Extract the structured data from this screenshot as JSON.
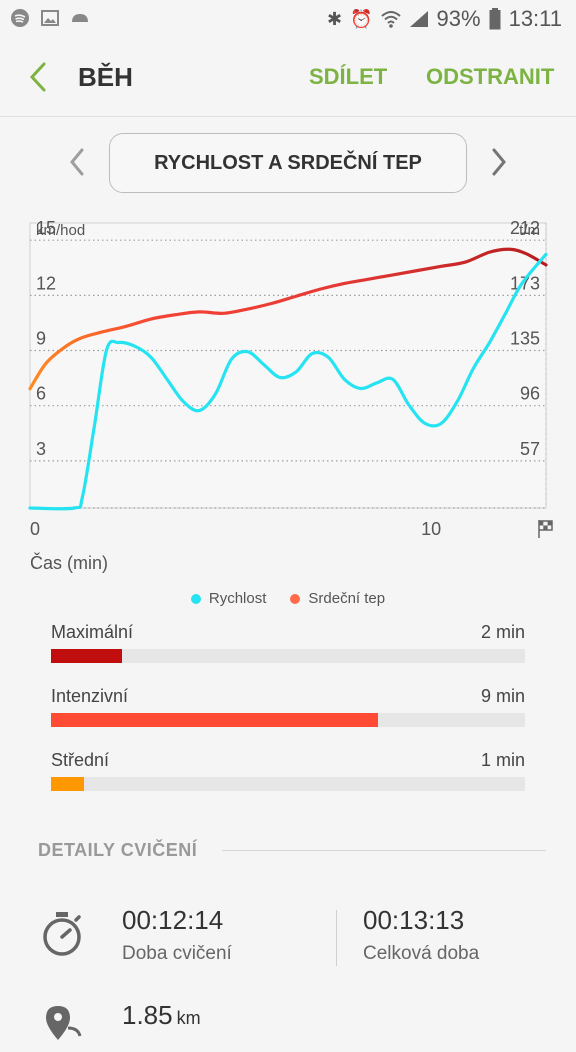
{
  "status_bar": {
    "battery": "93%",
    "time": "13:11"
  },
  "app_bar": {
    "title": "BĚH",
    "share": "SDÍLET",
    "delete": "ODSTRANIT"
  },
  "selector": {
    "label": "RYCHLOST A SRDEČNÍ TEP"
  },
  "chart_data": {
    "type": "line",
    "left_axis": {
      "unit": "km/hod",
      "ticks": [
        "15",
        "12",
        "9",
        "6",
        "3"
      ]
    },
    "right_axis": {
      "unit": "t/m",
      "ticks": [
        "212",
        "173",
        "135",
        "96",
        "57"
      ]
    },
    "x_ticks": [
      "0",
      "10"
    ],
    "xlabel": "Čas (min)",
    "xlim": [
      0,
      12.8
    ],
    "ylim": [
      0,
      15.5
    ],
    "series": [
      {
        "name": "Rychlost",
        "color": "#26e3f2",
        "x": [
          0,
          1.1,
          1.3,
          1.6,
          1.9,
          2.2,
          2.6,
          3.0,
          3.4,
          3.8,
          4.2,
          4.6,
          5.0,
          5.4,
          5.8,
          6.2,
          6.6,
          7.0,
          7.4,
          7.8,
          8.2,
          8.6,
          9.0,
          9.4,
          9.8,
          10.2,
          10.6,
          11.0,
          11.4,
          11.8,
          12.2,
          12.8
        ],
        "values": [
          0,
          0,
          0.6,
          4.5,
          8.6,
          9.0,
          8.8,
          8.2,
          7.0,
          5.8,
          5.3,
          6.2,
          8.1,
          8.5,
          7.8,
          7.1,
          7.4,
          8.4,
          8.2,
          7.0,
          6.5,
          6.8,
          7.0,
          5.6,
          4.6,
          4.6,
          5.8,
          7.6,
          9.0,
          10.6,
          12.2,
          13.8
        ]
      },
      {
        "name": "Srdeční tep",
        "color": "#e53935",
        "y_axis": "right",
        "x": [
          0,
          0.4,
          0.9,
          1.3,
          1.8,
          2.4,
          3.0,
          3.6,
          4.2,
          4.8,
          5.4,
          6.0,
          6.6,
          7.2,
          7.8,
          8.4,
          9.0,
          9.6,
          10.2,
          10.8,
          11.4,
          11.9,
          12.3,
          12.8
        ],
        "values": [
          102,
          120,
          132,
          138,
          142,
          146,
          151,
          154,
          156,
          155,
          158,
          162,
          167,
          172,
          176,
          179,
          182,
          185,
          188,
          191,
          198,
          200,
          197,
          189
        ]
      }
    ],
    "grid": true,
    "legend": "bottom-center"
  },
  "legend": {
    "speed": "Rychlost",
    "heart": "Srdeční tep",
    "speed_color": "#26e3f2",
    "heart_color": "#ff6b4a"
  },
  "zones": [
    {
      "label": "Maximální",
      "value": "2 min",
      "fraction": 0.15,
      "color": "#c00d0d"
    },
    {
      "label": "Intenzivní",
      "value": "9 min",
      "fraction": 0.69,
      "color": "#ff4b33"
    },
    {
      "label": "Střední",
      "value": "1 min",
      "fraction": 0.07,
      "color": "#ff9800"
    }
  ],
  "details": {
    "title": "DETAILY CVIČENÍ",
    "workout_time": "00:12:14",
    "workout_time_label": "Doba cvičení",
    "total_time": "00:13:13",
    "total_time_label": "Celková doba",
    "distance": "1.85",
    "distance_unit": "km"
  }
}
